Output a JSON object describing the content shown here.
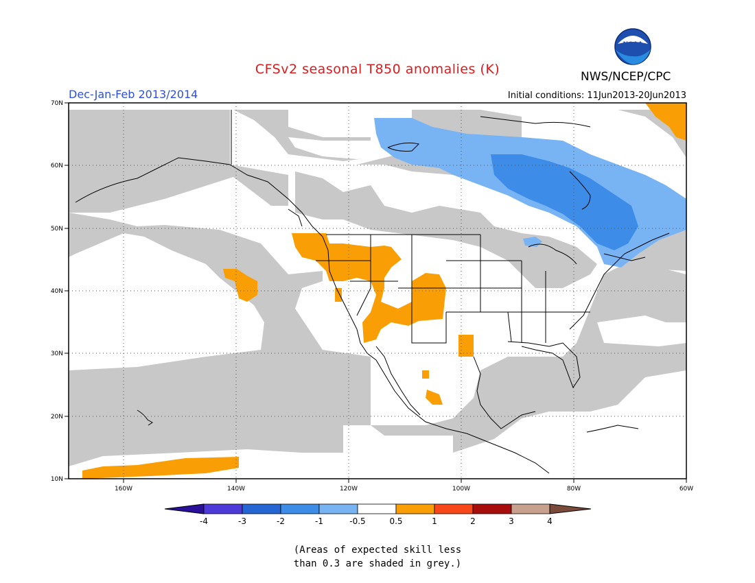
{
  "header": {
    "title": "CFSv2 seasonal T850 anomalies (K)",
    "org": "NWS/NCEP/CPC",
    "logo_text": "NOAA",
    "season": "Dec-Jan-Feb 2013/2014",
    "initial_conditions": "Initial conditions: 11Jun2013-20Jun2013"
  },
  "map": {
    "lon_labels": [
      "160W",
      "140W",
      "120W",
      "100W",
      "80W",
      "60W"
    ],
    "lat_labels": [
      "70N",
      "60N",
      "50N",
      "40N",
      "30N",
      "20N",
      "10N"
    ],
    "colors": {
      "grey_low_skill": "#c8c8c8",
      "ocean_white": "#ffffff",
      "anomaly_pos_0_5_to_1": "#f99f05",
      "anomaly_neg_0_5_to_1": "#78b4f4",
      "anomaly_neg_1_to_2": "#3c8ce8",
      "land_outline": "#000000"
    }
  },
  "colorbar": {
    "labels": [
      "-4",
      "-3",
      "-2",
      "-1",
      "-0.5",
      "0.5",
      "1",
      "2",
      "3",
      "4"
    ],
    "colors": [
      "#2a0f9a",
      "#4d3ad8",
      "#2467d4",
      "#3c8ce8",
      "#78b4f4",
      "#ffffff",
      "#f99f05",
      "#f8481a",
      "#a80d0d",
      "#c8a08e",
      "#7a4a3a"
    ]
  },
  "footnote": {
    "line1": "(Areas of expected skill less",
    "line2": "than 0.3 are shaded in grey.)"
  }
}
